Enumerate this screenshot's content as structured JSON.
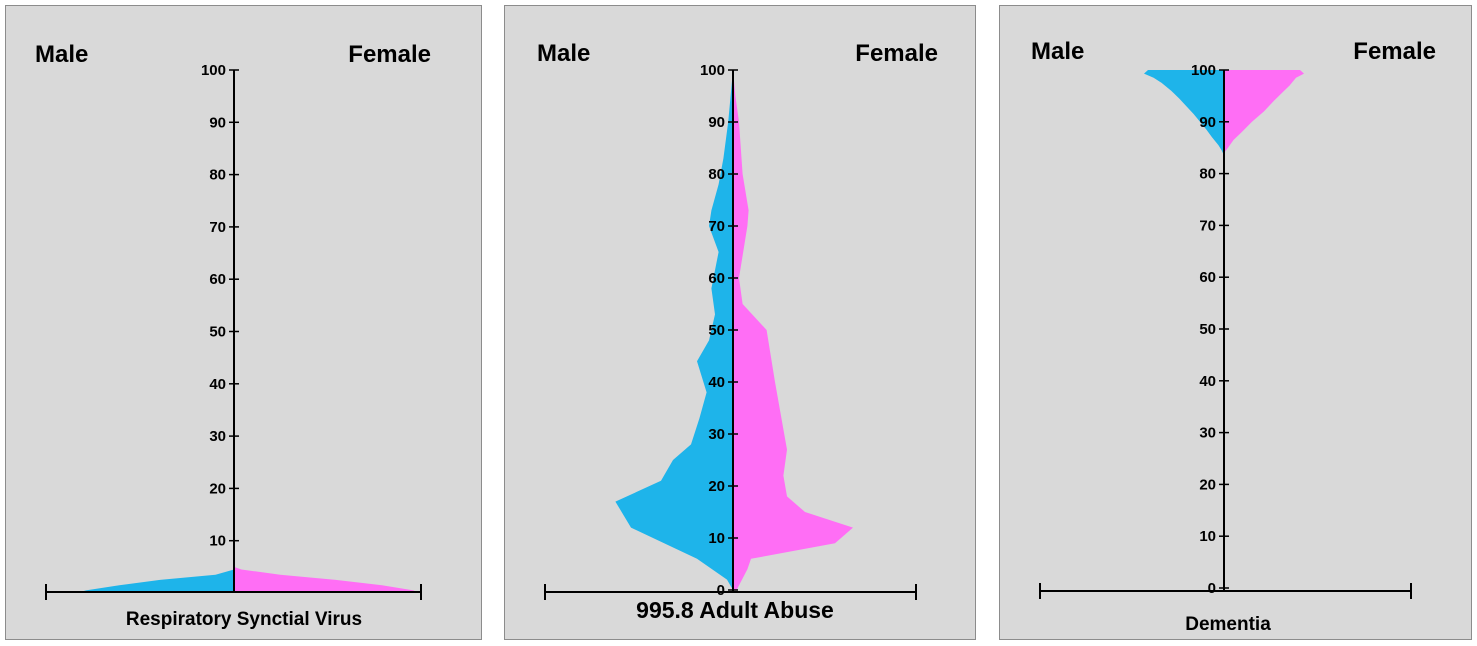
{
  "chart_data": [
    {
      "type": "area",
      "title": "Respiratory Synctial Virus",
      "left_label": "Male",
      "right_label": "Female",
      "y_ticks": [
        "10",
        "20",
        "30",
        "40",
        "50",
        "60",
        "70",
        "80",
        "90",
        "100"
      ],
      "ylim": [
        0,
        100
      ],
      "series": [
        {
          "name": "Male",
          "color": "#1eb4ea",
          "profile": [
            [
              0,
              0.85
            ],
            [
              0.5,
              0.8
            ],
            [
              1.5,
              0.62
            ],
            [
              2.5,
              0.4
            ],
            [
              3.5,
              0.1
            ],
            [
              4.5,
              0
            ],
            [
              100,
              0
            ]
          ]
        },
        {
          "name": "Female",
          "color": "#ff6ef5",
          "profile": [
            [
              0,
              1.0
            ],
            [
              0.5,
              0.97
            ],
            [
              1.5,
              0.8
            ],
            [
              2.5,
              0.55
            ],
            [
              3.5,
              0.25
            ],
            [
              4.5,
              0.04
            ],
            [
              5,
              0
            ],
            [
              100,
              0
            ]
          ]
        }
      ]
    },
    {
      "type": "area",
      "title": "995.8 Adult Abuse",
      "left_label": "Male",
      "right_label": "Female",
      "y_ticks": [
        "0",
        "10",
        "20",
        "30",
        "40",
        "50",
        "60",
        "70",
        "80",
        "90",
        "100"
      ],
      "ylim": [
        0,
        100
      ],
      "series": [
        {
          "name": "Male",
          "color": "#1eb4ea",
          "profile": [
            [
              0,
              0
            ],
            [
              2,
              0.05
            ],
            [
              6,
              0.3
            ],
            [
              12,
              0.85
            ],
            [
              17,
              0.98
            ],
            [
              21,
              0.6
            ],
            [
              25,
              0.5
            ],
            [
              28,
              0.35
            ],
            [
              33,
              0.28
            ],
            [
              38,
              0.22
            ],
            [
              44,
              0.3
            ],
            [
              48,
              0.2
            ],
            [
              53,
              0.15
            ],
            [
              58,
              0.18
            ],
            [
              65,
              0.12
            ],
            [
              70,
              0.2
            ],
            [
              73,
              0.18
            ],
            [
              78,
              0.12
            ],
            [
              83,
              0.08
            ],
            [
              90,
              0.04
            ],
            [
              95,
              0.02
            ],
            [
              100,
              0
            ]
          ]
        },
        {
          "name": "Female",
          "color": "#ff6ef5",
          "profile": [
            [
              0,
              0.03
            ],
            [
              4,
              0.12
            ],
            [
              6,
              0.15
            ],
            [
              9,
              0.85
            ],
            [
              12,
              1.0
            ],
            [
              15,
              0.6
            ],
            [
              18,
              0.45
            ],
            [
              22,
              0.42
            ],
            [
              27,
              0.45
            ],
            [
              40,
              0.35
            ],
            [
              50,
              0.28
            ],
            [
              55,
              0.08
            ],
            [
              60,
              0.05
            ],
            [
              70,
              0.12
            ],
            [
              73,
              0.13
            ],
            [
              80,
              0.08
            ],
            [
              90,
              0.05
            ],
            [
              95,
              0.02
            ],
            [
              100,
              0
            ]
          ]
        }
      ]
    },
    {
      "type": "area",
      "title": "Dementia",
      "left_label": "Male",
      "right_label": "Female",
      "y_ticks": [
        "0",
        "10",
        "20",
        "30",
        "40",
        "50",
        "60",
        "70",
        "80",
        "90",
        "100"
      ],
      "ylim": [
        0,
        100
      ],
      "series": [
        {
          "name": "Male",
          "color": "#1eb4ea",
          "profile": [
            [
              0,
              0
            ],
            [
              83.5,
              0
            ],
            [
              84.5,
              0.03
            ],
            [
              85.5,
              0.07
            ],
            [
              87,
              0.15
            ],
            [
              88.5,
              0.22
            ],
            [
              90,
              0.3
            ],
            [
              91.5,
              0.38
            ],
            [
              93,
              0.47
            ],
            [
              94.5,
              0.56
            ],
            [
              96,
              0.66
            ],
            [
              97.5,
              0.78
            ],
            [
              98.5,
              0.88
            ],
            [
              99.3,
              1.0
            ],
            [
              100,
              0.95
            ]
          ]
        },
        {
          "name": "Female",
          "color": "#ff6ef5",
          "profile": [
            [
              0,
              0
            ],
            [
              84,
              0
            ],
            [
              85,
              0.05
            ],
            [
              86.5,
              0.12
            ],
            [
              88,
              0.22
            ],
            [
              90,
              0.35
            ],
            [
              92,
              0.5
            ],
            [
              94,
              0.62
            ],
            [
              95.5,
              0.72
            ],
            [
              97,
              0.82
            ],
            [
              98.5,
              0.9
            ],
            [
              99.3,
              1.0
            ],
            [
              100,
              0.95
            ]
          ]
        }
      ]
    }
  ]
}
